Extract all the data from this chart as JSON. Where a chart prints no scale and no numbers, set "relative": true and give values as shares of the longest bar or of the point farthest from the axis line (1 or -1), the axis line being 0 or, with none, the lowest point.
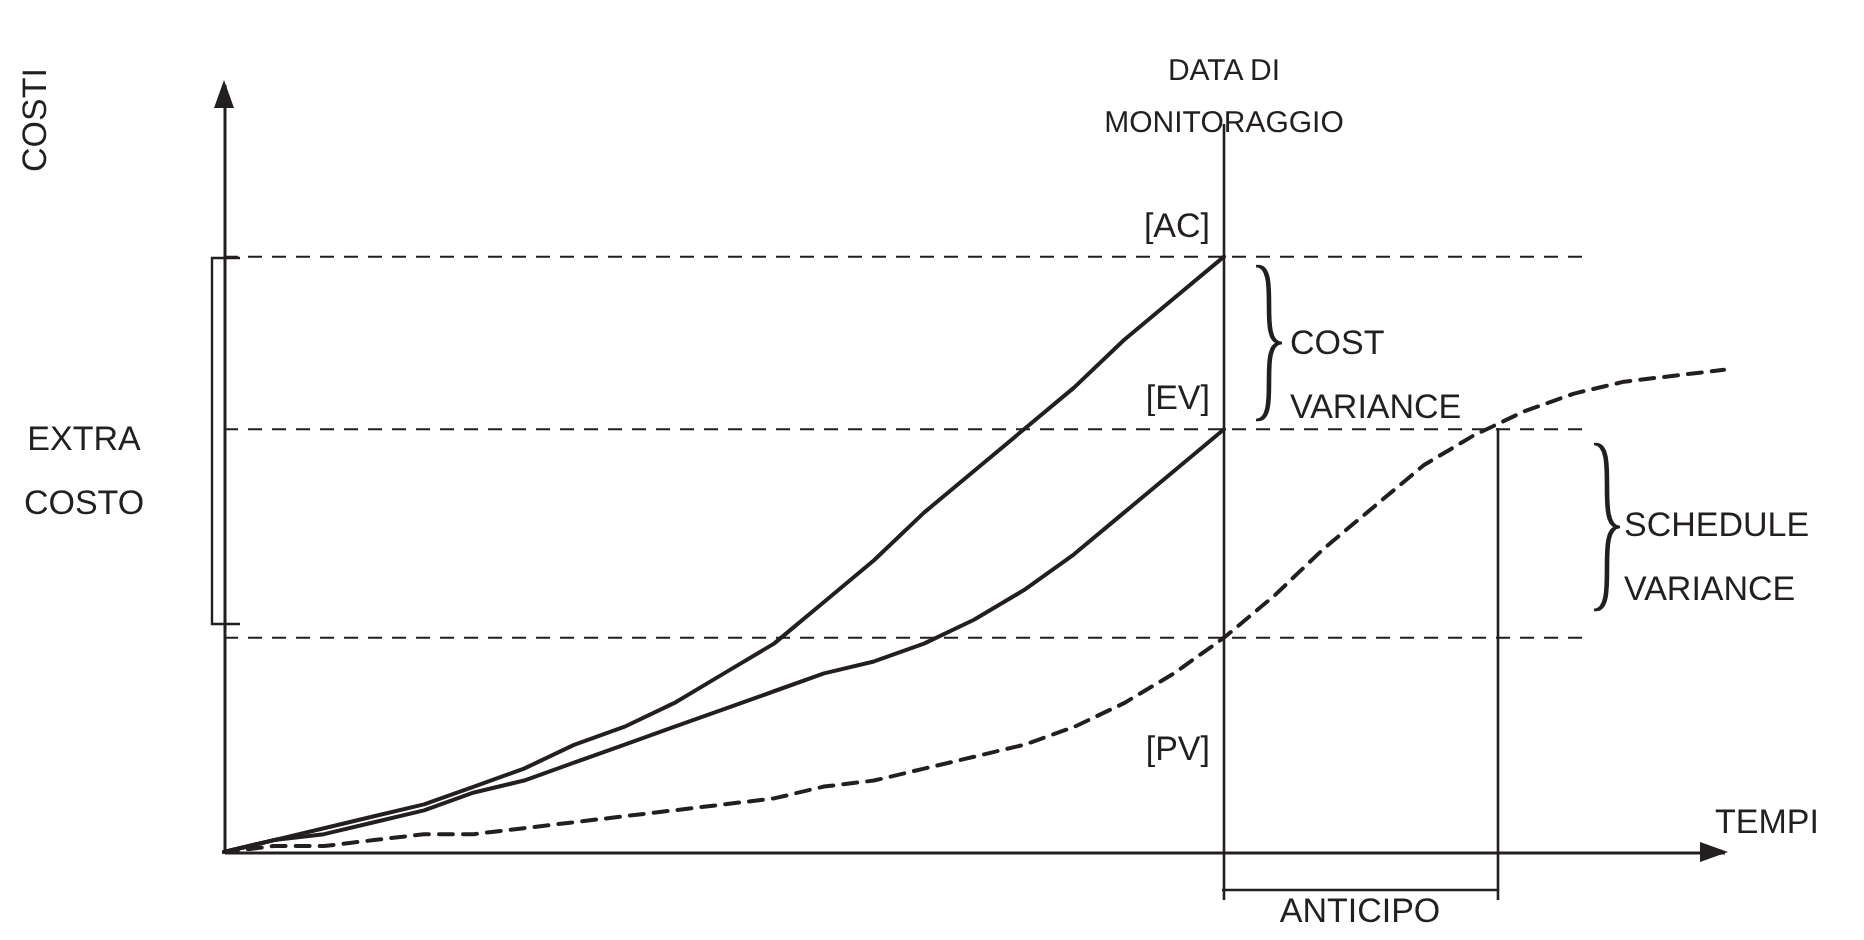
{
  "chart_data": {
    "type": "line",
    "relative": true,
    "xlabel": "TEMPI",
    "legend": false,
    "grid": false,
    "tick_labels": false,
    "marker": "none",
    "categories": [
      null,
      null,
      null,
      null,
      null,
      null,
      null,
      null,
      null,
      null,
      null,
      null,
      null,
      null,
      null,
      null,
      null,
      null,
      null,
      null,
      null,
      null,
      null,
      null,
      null,
      null,
      null,
      null,
      null,
      null,
      null
    ],
    "series": [
      {
        "name": "[AC]",
        "color": "#231f20",
        "line_style": "solid",
        "values": [
          0,
          0.02,
          0.04,
          0.06,
          0.08,
          0.11,
          0.14,
          0.18,
          0.21,
          0.25,
          0.3,
          0.35,
          0.42,
          0.49,
          0.57,
          0.64,
          0.71,
          0.78,
          0.86,
          0.93,
          1,
          null,
          null,
          null,
          null,
          null,
          null,
          null,
          null,
          null,
          null
        ]
      },
      {
        "name": "[EV]",
        "color": "#231f20",
        "line_style": "solid",
        "values": [
          0,
          0.02,
          0.03,
          0.05,
          0.07,
          0.1,
          0.12,
          0.15,
          0.18,
          0.21,
          0.24,
          0.27,
          0.3,
          0.32,
          0.35,
          0.39,
          0.44,
          0.5,
          0.57,
          0.64,
          0.71,
          null,
          null,
          null,
          null,
          null,
          null,
          null,
          null,
          null,
          null
        ]
      },
      {
        "name": "[PV]",
        "color": "#231f20",
        "line_style": "dashed",
        "values": [
          0,
          0.01,
          0.01,
          0.02,
          0.03,
          0.03,
          0.04,
          0.05,
          0.06,
          0.07,
          0.08,
          0.09,
          0.11,
          0.12,
          0.14,
          0.16,
          0.18,
          0.21,
          0.25,
          0.3,
          0.36,
          0.43,
          0.51,
          0.58,
          0.65,
          0.7,
          0.74,
          0.77,
          0.79,
          0.8,
          0.81
        ]
      }
    ],
    "ref_lines": [
      {
        "axis": "y",
        "value": 1,
        "label": null,
        "line_style": "dashed",
        "color": "#231f20"
      },
      {
        "axis": "y",
        "value": 0.71,
        "label": null,
        "line_style": "dashed",
        "color": "#231f20"
      },
      {
        "axis": "y",
        "value": 0.36,
        "label": null,
        "line_style": "dashed",
        "color": "#231f20"
      }
    ],
    "annotations": [
      "COST\nVARIANCE",
      "SCHEDULE\nVARIANCE",
      "EXTRA\nCOSTO",
      "ANTICIPO",
      "DATA DI\nMONITORAGGIO",
      "COSTI"
    ]
  }
}
